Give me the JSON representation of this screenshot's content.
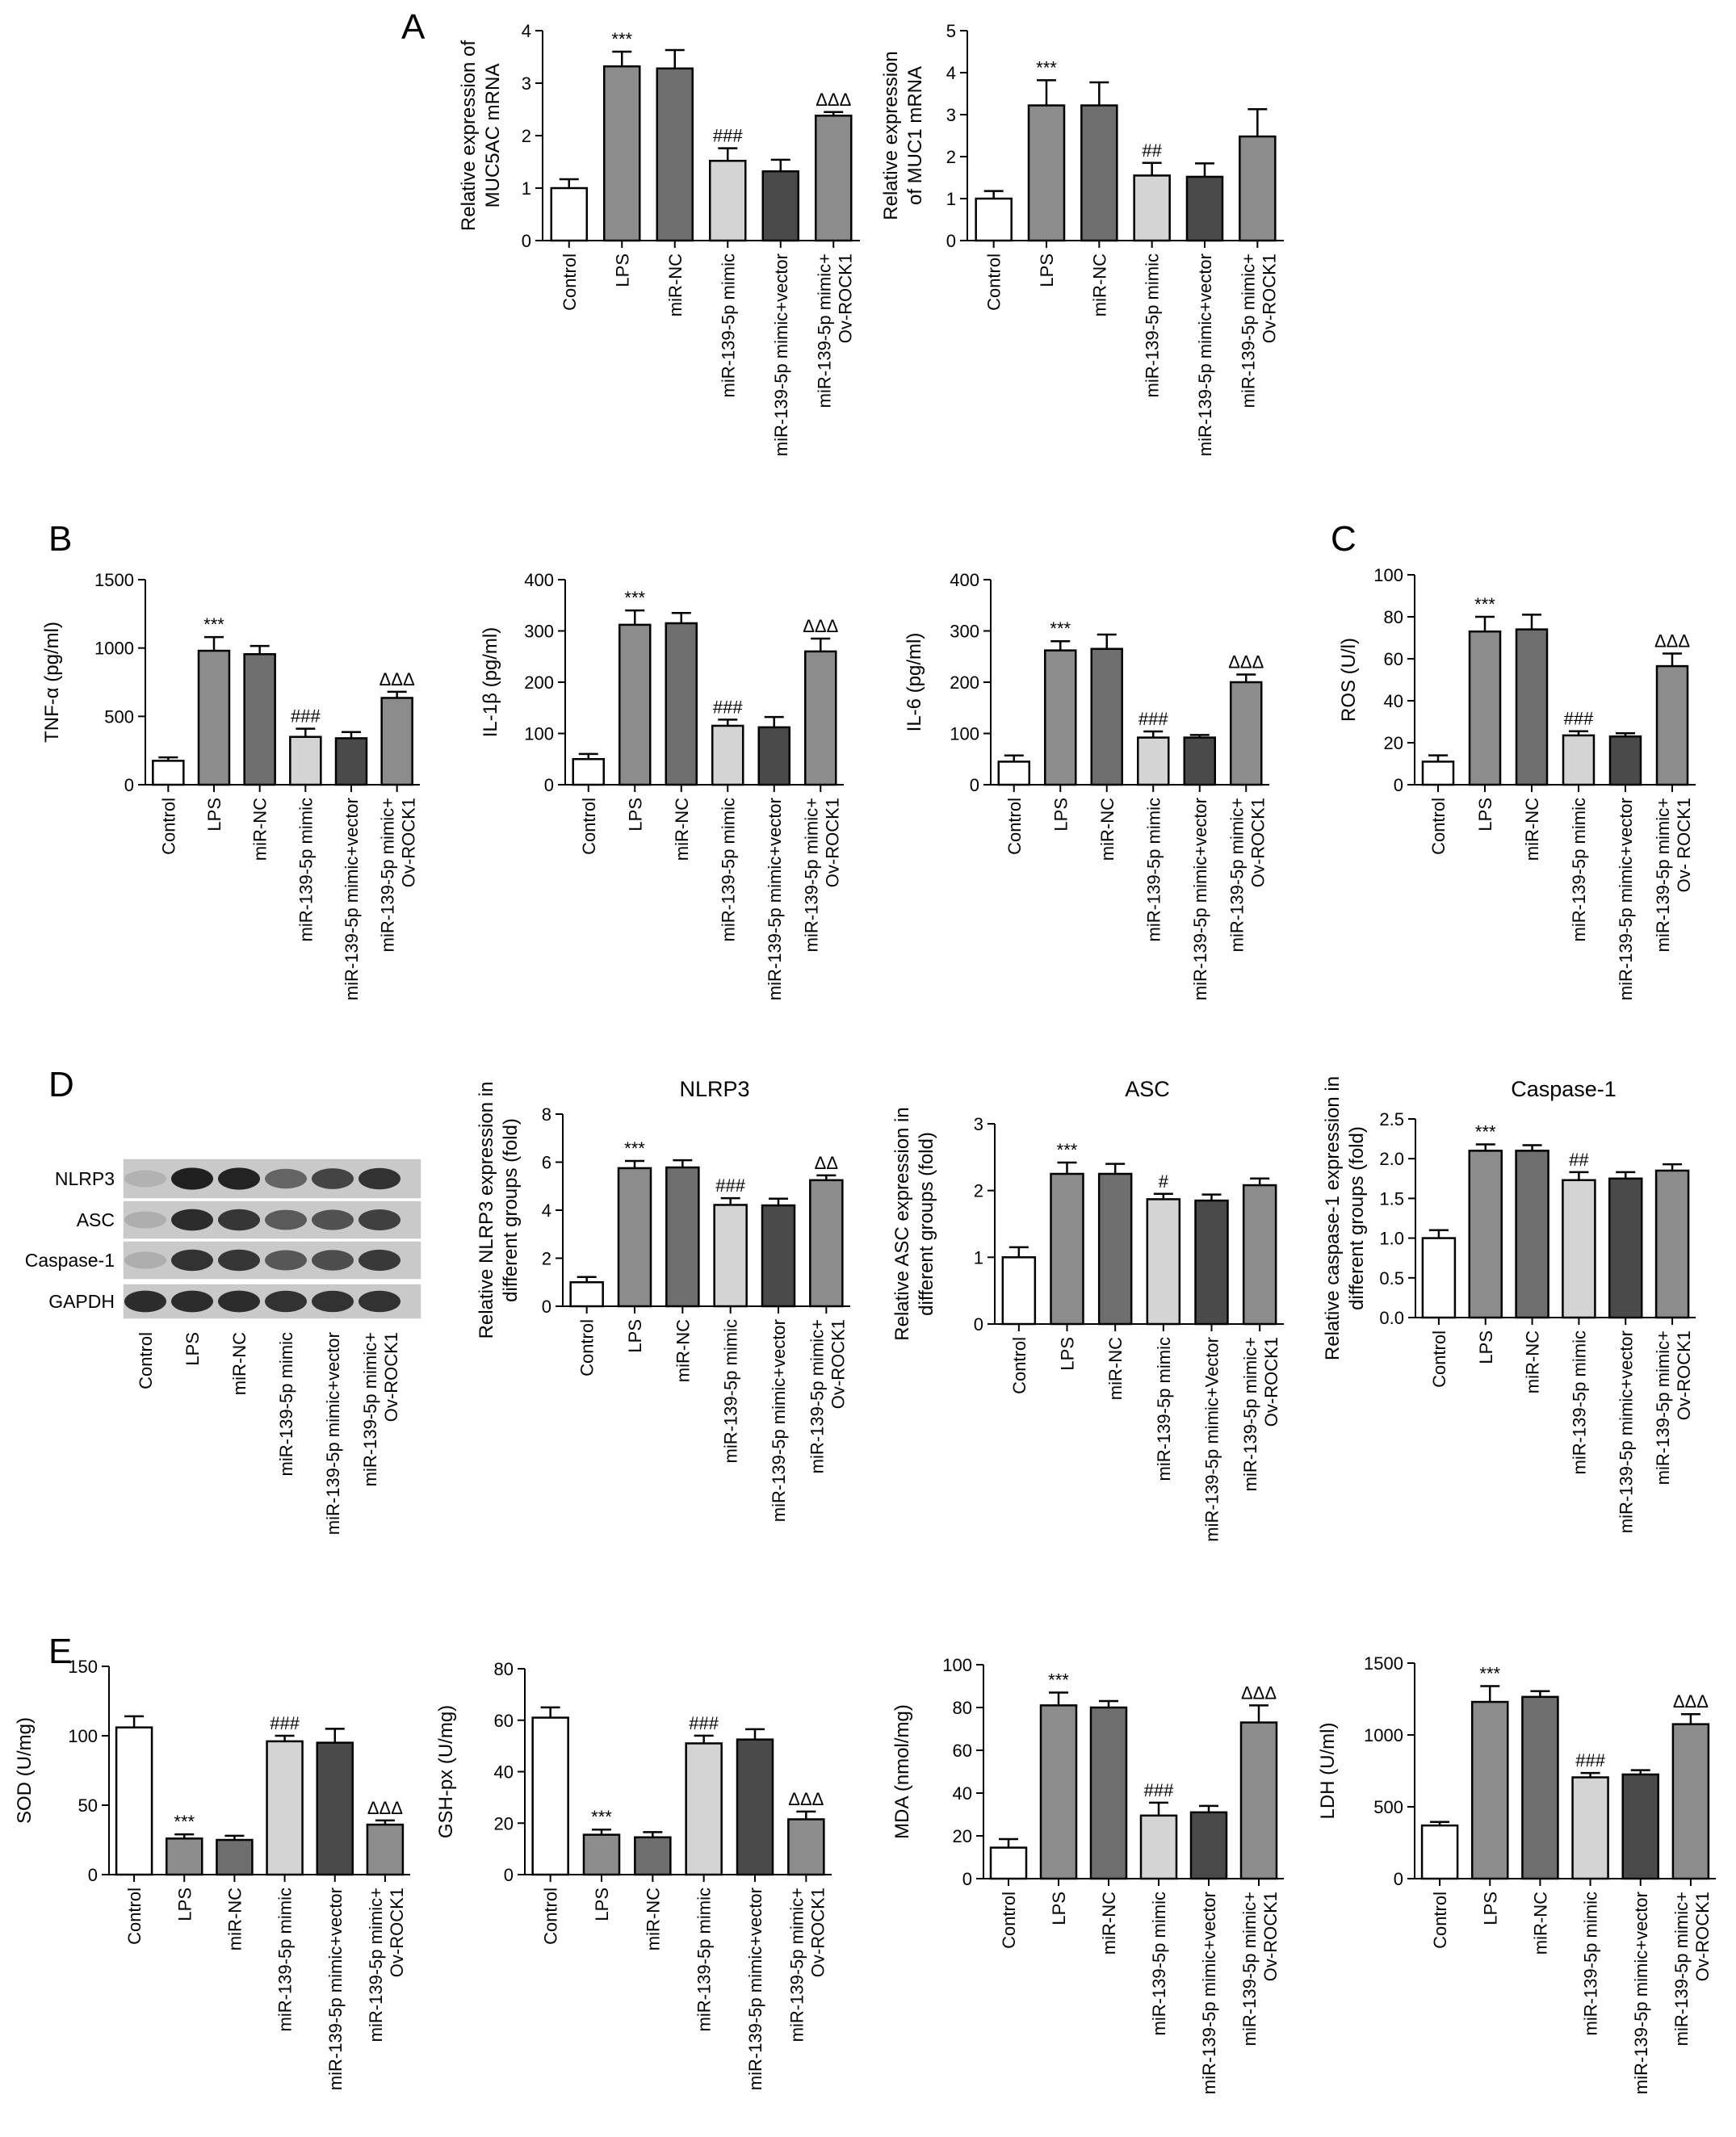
{
  "panel_letters": [
    "A",
    "B",
    "C",
    "D",
    "E"
  ],
  "colors": {
    "Control": "#ffffff",
    "LPS": "#8c8c8c",
    "miR-NC": "#6e6e6e",
    "mimic": "#d4d4d4",
    "mimic_vector": "#4a4a4a",
    "mimic_rock1": "#8c8c8c"
  },
  "blot": {
    "labels": [
      "NLRP3",
      "ASC",
      "Caspase-1",
      "GAPDH"
    ],
    "lanes": [
      "Control",
      "LPS",
      "miR-NC",
      "miR-139-5p mimic",
      "miR-139-5p mimic+vector",
      "miR-139-5p mimic+\nOv-ROCK1"
    ]
  },
  "chart_data": [
    {
      "id": "muc5ac",
      "type": "bar",
      "title": "",
      "ylabel": "Relative expression of\nMUC5AC mRNA",
      "ylim": [
        0,
        4
      ],
      "yticks": [
        0,
        1,
        2,
        3,
        4
      ],
      "categories": [
        "Control",
        "LPS",
        "miR-NC",
        "miR-139-5p mimic",
        "miR-139-5p mimic+vector",
        "miR-139-5p mimic+\nOv-ROCK1"
      ],
      "values": [
        1.0,
        3.32,
        3.28,
        1.52,
        1.32,
        2.38
      ],
      "errors": [
        0.17,
        0.28,
        0.35,
        0.24,
        0.22,
        0.07
      ],
      "sig": [
        "",
        "***",
        "",
        "###",
        "",
        "ΔΔΔ"
      ]
    },
    {
      "id": "muc1",
      "type": "bar",
      "title": "",
      "ylabel": "Relative expression\nof MUC1 mRNA",
      "ylim": [
        0,
        5
      ],
      "yticks": [
        0,
        1,
        2,
        3,
        4,
        5
      ],
      "categories": [
        "Control",
        "LPS",
        "miR-NC",
        "miR-139-5p mimic",
        "miR-139-5p mimic+vector",
        "miR-139-5p mimic+\nOv-ROCK1"
      ],
      "values": [
        1.0,
        3.22,
        3.22,
        1.55,
        1.52,
        2.48
      ],
      "errors": [
        0.18,
        0.6,
        0.55,
        0.3,
        0.32,
        0.65
      ],
      "sig": [
        "",
        "***",
        "",
        "##",
        "",
        ""
      ]
    },
    {
      "id": "tnf",
      "type": "bar",
      "title": "",
      "ylabel": "TNF-α (pg/ml)",
      "ylim": [
        0,
        1500
      ],
      "yticks": [
        0,
        500,
        1000,
        1500
      ],
      "categories": [
        "Control",
        "LPS",
        "miR-NC",
        "miR-139-5p mimic",
        "miR-139-5p mimic+vector",
        "miR-139-5p mimic+\nOv-ROCK1"
      ],
      "values": [
        175,
        980,
        955,
        350,
        340,
        635
      ],
      "errors": [
        25,
        100,
        60,
        60,
        45,
        45
      ],
      "sig": [
        "",
        "***",
        "",
        "###",
        "",
        "ΔΔΔ"
      ]
    },
    {
      "id": "il1b",
      "type": "bar",
      "title": "",
      "ylabel": "IL-1β (pg/ml)",
      "ylim": [
        0,
        400
      ],
      "yticks": [
        0,
        100,
        200,
        300,
        400
      ],
      "categories": [
        "Control",
        "LPS",
        "miR-NC",
        "miR-139-5p mimic",
        "miR-139-5p mimic+vector",
        "miR-139-5p mimic+\nOv-ROCK1"
      ],
      "values": [
        50,
        312,
        315,
        115,
        112,
        260
      ],
      "errors": [
        10,
        28,
        20,
        12,
        20,
        25
      ],
      "sig": [
        "",
        "***",
        "",
        "###",
        "",
        "ΔΔΔ"
      ]
    },
    {
      "id": "il6",
      "type": "bar",
      "title": "",
      "ylabel": "IL-6 (pg/ml)",
      "ylim": [
        0,
        400
      ],
      "yticks": [
        0,
        100,
        200,
        300,
        400
      ],
      "categories": [
        "Control",
        "LPS",
        "miR-NC",
        "miR-139-5p mimic",
        "miR-139-5p mimic+vector",
        "miR-139-5p mimic+\nOv-ROCK1"
      ],
      "values": [
        45,
        262,
        265,
        92,
        92,
        200
      ],
      "errors": [
        12,
        18,
        28,
        12,
        5,
        15
      ],
      "sig": [
        "",
        "***",
        "",
        "###",
        "",
        "ΔΔΔ"
      ]
    },
    {
      "id": "ros",
      "type": "bar",
      "title": "",
      "ylabel": "ROS (U/l)",
      "ylim": [
        0,
        100
      ],
      "yticks": [
        0,
        20,
        40,
        60,
        80,
        100
      ],
      "categories": [
        "Control",
        "LPS",
        "miR-NC",
        "miR-139-5p mimic",
        "miR-139-5p mimic+vector",
        "miR-139-5p mimic+\nOv- ROCK1"
      ],
      "values": [
        11,
        73,
        74,
        23.5,
        23,
        56.5
      ],
      "errors": [
        3,
        7,
        7,
        2,
        1.5,
        6
      ],
      "sig": [
        "",
        "***",
        "",
        "###",
        "",
        "ΔΔΔ"
      ]
    },
    {
      "id": "nlrp3",
      "type": "bar",
      "title": "NLRP3",
      "ylabel": "Relative NLRP3 expression in\ndifferent groups (fold)",
      "ylim": [
        0,
        8
      ],
      "yticks": [
        0,
        2,
        4,
        6,
        8
      ],
      "categories": [
        "Control",
        "LPS",
        "miR-NC",
        "miR-139-5p mimic",
        "miR-139-5p mimic+vector",
        "miR-139-5p mimic+\nOv-ROCK1"
      ],
      "values": [
        1.0,
        5.75,
        5.78,
        4.22,
        4.2,
        5.25
      ],
      "errors": [
        0.22,
        0.3,
        0.3,
        0.28,
        0.28,
        0.2
      ],
      "sig": [
        "",
        "***",
        "",
        "###",
        "",
        "ΔΔ"
      ]
    },
    {
      "id": "asc",
      "type": "bar",
      "title": "ASC",
      "ylabel": "Relative ASC expression in\ndifferent groups (fold)",
      "ylim": [
        0,
        3
      ],
      "yticks": [
        0,
        1,
        2,
        3
      ],
      "categories": [
        "Control",
        "LPS",
        "miR-NC",
        "miR-139-5p mimic",
        "miR-139-5p mimic+Vector",
        "miR-139-5p mimic+\nOv-ROCK1"
      ],
      "values": [
        1.0,
        2.25,
        2.25,
        1.87,
        1.85,
        2.08
      ],
      "errors": [
        0.15,
        0.17,
        0.15,
        0.08,
        0.09,
        0.1
      ],
      "sig": [
        "",
        "***",
        "",
        "#",
        "",
        ""
      ]
    },
    {
      "id": "casp1",
      "type": "bar",
      "title": "Caspase-1",
      "ylabel": "Relative caspase-1 expression in\ndifferent groups (fold)",
      "ylim": [
        0,
        2.5
      ],
      "yticks": [
        "0.0",
        "0.5",
        "1.0",
        "1.5",
        "2.0",
        "2.5"
      ],
      "categories": [
        "Control",
        "LPS",
        "miR-NC",
        "miR-139-5p mimic",
        "miR-139-5p mimic+vector",
        "miR-139-5p mimic+\nOv-ROCK1"
      ],
      "values": [
        1.0,
        2.1,
        2.1,
        1.73,
        1.75,
        1.85
      ],
      "errors": [
        0.1,
        0.08,
        0.07,
        0.1,
        0.08,
        0.08
      ],
      "sig": [
        "",
        "***",
        "",
        "##",
        "",
        ""
      ]
    },
    {
      "id": "sod",
      "type": "bar",
      "title": "",
      "ylabel": "SOD (U/mg)",
      "ylim": [
        0,
        150
      ],
      "yticks": [
        0,
        50,
        100,
        150
      ],
      "categories": [
        "Control",
        "LPS",
        "miR-NC",
        "miR-139-5p mimic",
        "miR-139-5p mimic+vector",
        "miR-139-5p mimic+\nOv-ROCK1"
      ],
      "values": [
        106,
        26,
        25,
        96,
        95,
        36
      ],
      "errors": [
        8,
        3,
        3,
        4,
        10,
        3
      ],
      "sig": [
        "",
        "***",
        "",
        "###",
        "",
        "ΔΔΔ"
      ]
    },
    {
      "id": "gsh",
      "type": "bar",
      "title": "",
      "ylabel": "GSH-px (U/mg)",
      "ylim": [
        0,
        80
      ],
      "yticks": [
        0,
        20,
        40,
        60,
        80
      ],
      "categories": [
        "Control",
        "LPS",
        "miR-NC",
        "miR-139-5p mimic",
        "miR-139-5p mimic+vector",
        "miR-139-5p mimic+\nOv-ROCK1"
      ],
      "values": [
        61,
        15.5,
        14.5,
        51,
        52.5,
        21.5
      ],
      "errors": [
        4,
        2,
        2,
        3,
        4,
        3
      ],
      "sig": [
        "",
        "***",
        "",
        "###",
        "",
        "ΔΔΔ"
      ]
    },
    {
      "id": "mda",
      "type": "bar",
      "title": "",
      "ylabel": "MDA (nmol/mg)",
      "ylim": [
        0,
        100
      ],
      "yticks": [
        0,
        20,
        40,
        60,
        80,
        100
      ],
      "categories": [
        "Control",
        "LPS",
        "miR-NC",
        "miR-139-5p mimic",
        "miR-139-5p mimic+vector",
        "miR-139-5p mimic+\nOv-ROCK1"
      ],
      "values": [
        14.5,
        81,
        80,
        29.5,
        31,
        73
      ],
      "errors": [
        4,
        6,
        3,
        6,
        3,
        8
      ],
      "sig": [
        "",
        "***",
        "",
        "###",
        "",
        "ΔΔΔ"
      ]
    },
    {
      "id": "ldh",
      "type": "bar",
      "title": "",
      "ylabel": "LDH (U/ml)",
      "ylim": [
        0,
        1500
      ],
      "yticks": [
        0,
        500,
        1000,
        1500
      ],
      "categories": [
        "Control",
        "LPS",
        "miR-NC",
        "miR-139-5p mimic",
        "miR-139-5p mimic+vector",
        "miR-139-5p mimic+\nOv-ROCK1"
      ],
      "values": [
        370,
        1230,
        1265,
        705,
        725,
        1075
      ],
      "errors": [
        25,
        110,
        40,
        30,
        30,
        70
      ],
      "sig": [
        "",
        "***",
        "",
        "###",
        "",
        "ΔΔΔ"
      ]
    }
  ]
}
